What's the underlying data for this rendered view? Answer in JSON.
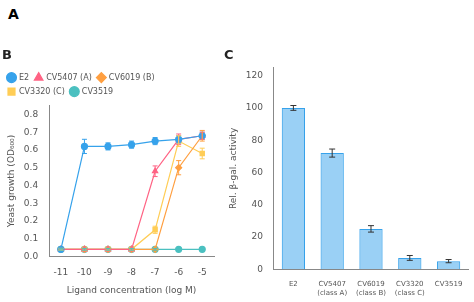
{
  "chart_data": [
    {
      "type": "line",
      "title": "B",
      "annotations": [
        "A"
      ],
      "xlabel": "Ligand concentration (log M)",
      "ylabel": "Yeast growth (OD₆₀₀)",
      "x": [
        -11,
        -10,
        -9,
        -8,
        -7,
        -6,
        -5
      ],
      "xlim": [
        -11.5,
        -4.5
      ],
      "xticks": [
        -11,
        -10,
        -9,
        -8,
        -7,
        -6,
        -5
      ],
      "ylim": [
        0,
        0.85
      ],
      "yticks": [
        {
          "value": 0,
          "label": "0.0"
        },
        0.1,
        0.2,
        0.3,
        0.4,
        0.5,
        0.6,
        0.7,
        0.8
      ],
      "grid": false,
      "legend": "upper left",
      "series": [
        {
          "name": "E2",
          "marker": "circle",
          "values": [
            0.04,
            0.62,
            0.62,
            0.63,
            0.65,
            0.66,
            0.68
          ],
          "errors": [
            0.01,
            0.04,
            0.02,
            0.02,
            0.02,
            0.02,
            0.02
          ]
        },
        {
          "name": "CV5407 (A)",
          "marker": "triangle",
          "values": [
            0.04,
            0.04,
            0.04,
            0.04,
            0.48,
            0.66,
            0.68
          ],
          "errors": [
            0.005,
            0.005,
            0.005,
            0.005,
            0.03,
            0.03,
            0.02
          ]
        },
        {
          "name": "CV6019 (B)",
          "marker": "diamond",
          "values": [
            0.04,
            0.04,
            0.04,
            0.04,
            0.04,
            0.5,
            0.68
          ],
          "errors": [
            0.005,
            0.005,
            0.005,
            0.005,
            0.005,
            0.04,
            0.03
          ]
        },
        {
          "name": "CV3320 (C)",
          "marker": "square",
          "values": [
            0.04,
            0.04,
            0.04,
            0.04,
            0.15,
            0.65,
            0.58
          ],
          "errors": [
            0.005,
            0.005,
            0.005,
            0.005,
            0.02,
            0.03,
            0.03
          ]
        },
        {
          "name": "CV3519",
          "marker": "circle",
          "values": [
            0.04,
            0.04,
            0.04,
            0.04,
            0.04,
            0.04,
            0.04
          ],
          "errors": [
            0.005,
            0.005,
            0.005,
            0.005,
            0.005,
            0.005,
            0.005
          ]
        }
      ]
    },
    {
      "type": "bar",
      "title": "C",
      "ylabel": "Rel. β-gal. activity",
      "categories": [
        "E2",
        "CV5407\n(class A)",
        "CV6019\n(class B)",
        "CV3320\n(class C)",
        "CV3519"
      ],
      "values": [
        100,
        72,
        25,
        7,
        5
      ],
      "errors": [
        1.5,
        2.5,
        2.0,
        1.5,
        1.0
      ],
      "ylim": [
        0,
        125
      ],
      "yticks": [
        0,
        20,
        40,
        60,
        80,
        100,
        120
      ],
      "grid": false
    }
  ]
}
